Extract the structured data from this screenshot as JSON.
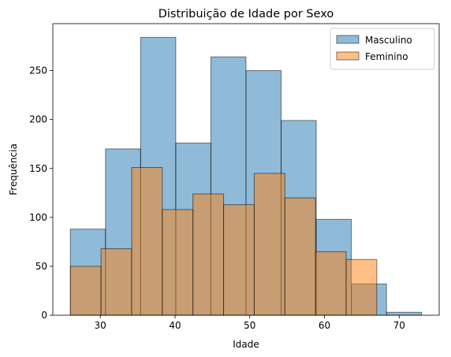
{
  "chart_data": {
    "type": "histogram",
    "title": "Distribuição de Idade por Sexo",
    "xlabel": "Idade",
    "ylabel": "Frequência",
    "xlim": [
      23.65,
      75.35
    ],
    "ylim": [
      0,
      298
    ],
    "xticks": [
      30,
      40,
      50,
      60,
      70
    ],
    "yticks": [
      0,
      50,
      100,
      150,
      200,
      250
    ],
    "grid": false,
    "legend": {
      "placement": "top-right"
    },
    "series": [
      {
        "name": "Masculino",
        "color": "#1f77b4",
        "alpha": 0.5,
        "bins": [
          26.0,
          30.7,
          35.4,
          40.1,
          44.8,
          49.5,
          54.2,
          58.9,
          63.6,
          68.3,
          73.0
        ],
        "values": [
          88,
          170,
          284,
          176,
          264,
          250,
          199,
          98,
          32,
          3
        ]
      },
      {
        "name": "Feminino",
        "color": "#ff7f0e",
        "alpha": 0.5,
        "bins": [
          26.0,
          30.1,
          34.2,
          38.3,
          42.4,
          46.5,
          50.6,
          54.7,
          58.8,
          62.9,
          67.0
        ],
        "values": [
          50,
          68,
          151,
          108,
          124,
          113,
          145,
          120,
          65,
          57
        ]
      }
    ]
  }
}
